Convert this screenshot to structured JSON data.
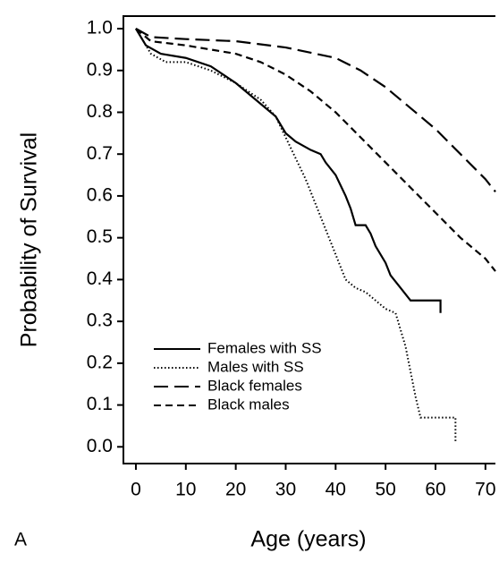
{
  "chart_data": {
    "type": "line",
    "x_label": "Age (years)",
    "y_label": "Probability of Survival",
    "panel_label": "A",
    "xlim": [
      -2.5,
      72
    ],
    "ylim": [
      -0.04,
      1.03
    ],
    "xticks": [
      0,
      10,
      20,
      30,
      40,
      50,
      60,
      70
    ],
    "yticks": [
      {
        "value": 0,
        "label": "0.0"
      },
      0.1,
      0.2,
      0.3,
      0.4,
      0.5,
      0.6,
      0.7,
      0.8,
      0.9,
      {
        "value": 1,
        "label": "1.0"
      }
    ],
    "legend": "lower left",
    "series": [
      {
        "name": "Females with SS",
        "color": "#000000",
        "line_style": "solid",
        "x": [
          0,
          2,
          5,
          10,
          15,
          20,
          25,
          28,
          30,
          32,
          35,
          37,
          38,
          40,
          42,
          43,
          44,
          46,
          47,
          48,
          50,
          51,
          53,
          55,
          61,
          61
        ],
        "values": [
          1.0,
          0.96,
          0.94,
          0.93,
          0.91,
          0.87,
          0.82,
          0.79,
          0.75,
          0.73,
          0.71,
          0.7,
          0.68,
          0.65,
          0.6,
          0.57,
          0.53,
          0.53,
          0.51,
          0.48,
          0.44,
          0.41,
          0.38,
          0.35,
          0.35,
          0.32
        ]
      },
      {
        "name": "Males with SS",
        "color": "#000000",
        "line_style": "dotted",
        "x": [
          0,
          3,
          6,
          10,
          15,
          20,
          25,
          28,
          30,
          32,
          34,
          36,
          38,
          40,
          42,
          44,
          46,
          48,
          50,
          52,
          53,
          54,
          55,
          56,
          57,
          60,
          64,
          64
        ],
        "values": [
          1.0,
          0.94,
          0.92,
          0.92,
          0.9,
          0.87,
          0.83,
          0.79,
          0.74,
          0.69,
          0.64,
          0.58,
          0.52,
          0.46,
          0.4,
          0.38,
          0.37,
          0.35,
          0.33,
          0.32,
          0.28,
          0.24,
          0.18,
          0.12,
          0.07,
          0.07,
          0.07,
          0.01
        ]
      },
      {
        "name": "Black females",
        "color": "#000000",
        "line_style": "long-dash",
        "x": [
          0,
          3,
          10,
          20,
          30,
          40,
          45,
          50,
          55,
          60,
          65,
          70,
          72
        ],
        "values": [
          1.0,
          0.98,
          0.975,
          0.97,
          0.955,
          0.93,
          0.9,
          0.86,
          0.81,
          0.76,
          0.7,
          0.64,
          0.61
        ]
      },
      {
        "name": "Black males",
        "color": "#000000",
        "line_style": "dash",
        "x": [
          0,
          3,
          10,
          20,
          25,
          30,
          35,
          40,
          45,
          50,
          55,
          60,
          65,
          70,
          72
        ],
        "values": [
          1.0,
          0.97,
          0.96,
          0.94,
          0.92,
          0.89,
          0.85,
          0.8,
          0.74,
          0.68,
          0.62,
          0.56,
          0.5,
          0.45,
          0.42
        ]
      }
    ]
  }
}
